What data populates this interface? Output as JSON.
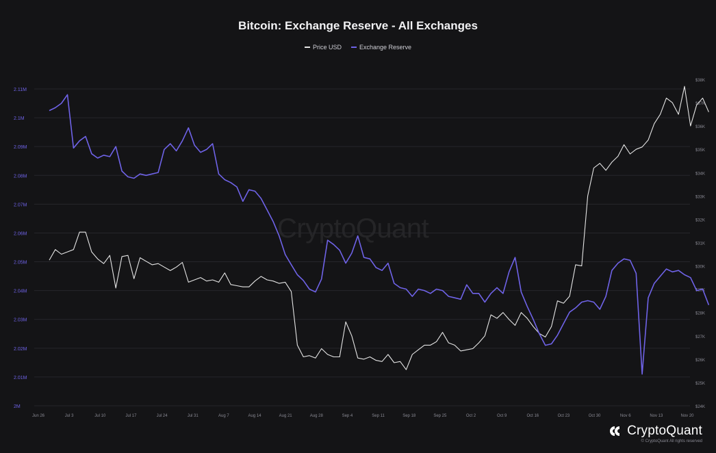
{
  "chart_data": {
    "type": "line",
    "title": "Bitcoin: Exchange Reserve - All Exchanges",
    "legend_position": "top-center",
    "grid": true,
    "x_ticks": [
      "Jun 26",
      "Jul 3",
      "Jul 10",
      "Jul 17",
      "Jul 24",
      "Jul 31",
      "Aug 7",
      "Aug 14",
      "Aug 21",
      "Aug 28",
      "Sep 4",
      "Sep 11",
      "Sep 18",
      "Sep 25",
      "Oct 2",
      "Oct 9",
      "Oct 16",
      "Oct 23",
      "Oct 30",
      "Nov 6",
      "Nov 13",
      "Nov 20"
    ],
    "left_axis": {
      "ticks": [
        "2M",
        "2.01M",
        "2.02M",
        "2.03M",
        "2.04M",
        "2.05M",
        "2.06M",
        "2.07M",
        "2.08M",
        "2.09M",
        "2.1M",
        "2.11M"
      ],
      "range": [
        2000000,
        2110000
      ]
    },
    "right_axis": {
      "ticks": [
        "$24K",
        "$25K",
        "$26K",
        "$27K",
        "$28K",
        "$29K",
        "$30K",
        "$31K",
        "$32K",
        "$33K",
        "$34K",
        "$35K",
        "$36K",
        "$37K",
        "$38K"
      ],
      "range": [
        24000,
        38000
      ]
    },
    "series": [
      {
        "name": "Price USD",
        "color": "#e6e6e6",
        "axis": "right",
        "points": [
          [
            0,
            30250
          ],
          [
            2,
            30700
          ],
          [
            4,
            30500
          ],
          [
            6,
            30600
          ],
          [
            8,
            30700
          ],
          [
            10,
            31450
          ],
          [
            12,
            31450
          ],
          [
            14,
            30600
          ],
          [
            16,
            30300
          ],
          [
            18,
            30100
          ],
          [
            20,
            30450
          ],
          [
            22,
            29050
          ],
          [
            24,
            30400
          ],
          [
            26,
            30450
          ],
          [
            28,
            29450
          ],
          [
            30,
            30350
          ],
          [
            32,
            30200
          ],
          [
            34,
            30050
          ],
          [
            36,
            30100
          ],
          [
            38,
            29950
          ],
          [
            40,
            29800
          ],
          [
            42,
            29950
          ],
          [
            44,
            30150
          ],
          [
            46,
            29300
          ],
          [
            48,
            29400
          ],
          [
            50,
            29500
          ],
          [
            52,
            29350
          ],
          [
            54,
            29400
          ],
          [
            56,
            29300
          ],
          [
            58,
            29700
          ],
          [
            60,
            29200
          ],
          [
            62,
            29150
          ],
          [
            64,
            29100
          ],
          [
            66,
            29100
          ],
          [
            68,
            29350
          ],
          [
            70,
            29550
          ],
          [
            72,
            29400
          ],
          [
            74,
            29350
          ],
          [
            76,
            29250
          ],
          [
            78,
            29300
          ],
          [
            80,
            28900
          ],
          [
            82,
            26600
          ],
          [
            84,
            26100
          ],
          [
            86,
            26150
          ],
          [
            88,
            26050
          ],
          [
            90,
            26450
          ],
          [
            92,
            26200
          ],
          [
            94,
            26100
          ],
          [
            96,
            26100
          ],
          [
            98,
            27600
          ],
          [
            100,
            27000
          ],
          [
            102,
            26050
          ],
          [
            104,
            26000
          ],
          [
            106,
            26100
          ],
          [
            108,
            25950
          ],
          [
            110,
            25900
          ],
          [
            112,
            26200
          ],
          [
            114,
            25850
          ],
          [
            116,
            25900
          ],
          [
            118,
            25550
          ],
          [
            120,
            26200
          ],
          [
            122,
            26400
          ],
          [
            124,
            26600
          ],
          [
            126,
            26600
          ],
          [
            128,
            26750
          ],
          [
            130,
            27150
          ],
          [
            132,
            26700
          ],
          [
            134,
            26600
          ],
          [
            136,
            26350
          ],
          [
            138,
            26400
          ],
          [
            140,
            26450
          ],
          [
            142,
            26700
          ],
          [
            144,
            27000
          ],
          [
            146,
            27900
          ],
          [
            148,
            27750
          ],
          [
            150,
            28000
          ],
          [
            152,
            27700
          ],
          [
            154,
            27450
          ],
          [
            156,
            28000
          ],
          [
            158,
            27750
          ],
          [
            160,
            27400
          ],
          [
            162,
            27100
          ],
          [
            164,
            26950
          ],
          [
            166,
            27400
          ],
          [
            168,
            28500
          ],
          [
            170,
            28400
          ],
          [
            172,
            28700
          ],
          [
            174,
            30050
          ],
          [
            176,
            30000
          ],
          [
            178,
            33000
          ],
          [
            180,
            34200
          ],
          [
            182,
            34400
          ],
          [
            184,
            34100
          ],
          [
            186,
            34450
          ],
          [
            188,
            34700
          ],
          [
            190,
            35200
          ],
          [
            192,
            34800
          ],
          [
            194,
            35000
          ],
          [
            196,
            35100
          ],
          [
            198,
            35400
          ],
          [
            200,
            36100
          ],
          [
            202,
            36500
          ],
          [
            204,
            37200
          ],
          [
            206,
            37000
          ],
          [
            208,
            36500
          ],
          [
            210,
            37700
          ],
          [
            212,
            36000
          ],
          [
            214,
            36900
          ],
          [
            216,
            37200
          ],
          [
            218,
            36600
          ]
        ]
      },
      {
        "name": "Exchange Reserve",
        "color": "#6f63e8",
        "axis": "left",
        "points": [
          [
            0,
            2102500
          ],
          [
            2,
            2103500
          ],
          [
            4,
            2105000
          ],
          [
            6,
            2108000
          ],
          [
            8,
            2089500
          ],
          [
            10,
            2092000
          ],
          [
            12,
            2093500
          ],
          [
            14,
            2087500
          ],
          [
            16,
            2086000
          ],
          [
            18,
            2087000
          ],
          [
            20,
            2086500
          ],
          [
            22,
            2090000
          ],
          [
            24,
            2081500
          ],
          [
            26,
            2079500
          ],
          [
            28,
            2079000
          ],
          [
            30,
            2080500
          ],
          [
            32,
            2080000
          ],
          [
            34,
            2080500
          ],
          [
            36,
            2081000
          ],
          [
            38,
            2089000
          ],
          [
            40,
            2091000
          ],
          [
            42,
            2088500
          ],
          [
            44,
            2092000
          ],
          [
            46,
            2096500
          ],
          [
            48,
            2090500
          ],
          [
            50,
            2088000
          ],
          [
            52,
            2089000
          ],
          [
            54,
            2091000
          ],
          [
            56,
            2080500
          ],
          [
            58,
            2078500
          ],
          [
            60,
            2077500
          ],
          [
            62,
            2076000
          ],
          [
            64,
            2071000
          ],
          [
            66,
            2075000
          ],
          [
            68,
            2074500
          ],
          [
            70,
            2072000
          ],
          [
            72,
            2068000
          ],
          [
            74,
            2064000
          ],
          [
            76,
            2059000
          ],
          [
            78,
            2052500
          ],
          [
            80,
            2049000
          ],
          [
            82,
            2045500
          ],
          [
            84,
            2043500
          ],
          [
            86,
            2040500
          ],
          [
            88,
            2039500
          ],
          [
            90,
            2044000
          ],
          [
            92,
            2057500
          ],
          [
            94,
            2056000
          ],
          [
            96,
            2054000
          ],
          [
            98,
            2049500
          ],
          [
            100,
            2053000
          ],
          [
            102,
            2059000
          ],
          [
            104,
            2051500
          ],
          [
            106,
            2051000
          ],
          [
            108,
            2048000
          ],
          [
            110,
            2047000
          ],
          [
            112,
            2049500
          ],
          [
            114,
            2042500
          ],
          [
            116,
            2041000
          ],
          [
            118,
            2040500
          ],
          [
            120,
            2038000
          ],
          [
            122,
            2040500
          ],
          [
            124,
            2040000
          ],
          [
            126,
            2039000
          ],
          [
            128,
            2040500
          ],
          [
            130,
            2040000
          ],
          [
            132,
            2038000
          ],
          [
            134,
            2037500
          ],
          [
            136,
            2037000
          ],
          [
            138,
            2042000
          ],
          [
            140,
            2039000
          ],
          [
            142,
            2039000
          ],
          [
            144,
            2036000
          ],
          [
            146,
            2039000
          ],
          [
            148,
            2041000
          ],
          [
            150,
            2039000
          ],
          [
            152,
            2046500
          ],
          [
            154,
            2051500
          ],
          [
            156,
            2039500
          ],
          [
            158,
            2034500
          ],
          [
            160,
            2030000
          ],
          [
            162,
            2025000
          ],
          [
            164,
            2021000
          ],
          [
            166,
            2021500
          ],
          [
            168,
            2024500
          ],
          [
            170,
            2028500
          ],
          [
            172,
            2032500
          ],
          [
            174,
            2034000
          ],
          [
            176,
            2036000
          ],
          [
            178,
            2036500
          ],
          [
            180,
            2036000
          ],
          [
            182,
            2033500
          ],
          [
            184,
            2038000
          ],
          [
            186,
            2047000
          ],
          [
            188,
            2049500
          ],
          [
            190,
            2051000
          ],
          [
            192,
            2050500
          ],
          [
            194,
            2046000
          ],
          [
            196,
            2011000
          ],
          [
            198,
            2037500
          ],
          [
            200,
            2042500
          ],
          [
            202,
            2045000
          ],
          [
            204,
            2047500
          ],
          [
            206,
            2046500
          ],
          [
            208,
            2047000
          ],
          [
            210,
            2045500
          ],
          [
            212,
            2044500
          ],
          [
            214,
            2040000
          ],
          [
            216,
            2040500
          ],
          [
            218,
            2035000
          ]
        ]
      }
    ]
  },
  "legend": {
    "price_label": "Price USD",
    "reserve_label": "Exchange Reserve"
  },
  "watermark": "CryptoQuant",
  "brand": {
    "name": "CryptoQuant",
    "rights": "© CryptoQuant All rights reserved"
  },
  "colors": {
    "background": "#141416",
    "grid": "#26262b",
    "left_tick": "#6f63e8",
    "right_tick": "#8a8a94"
  }
}
